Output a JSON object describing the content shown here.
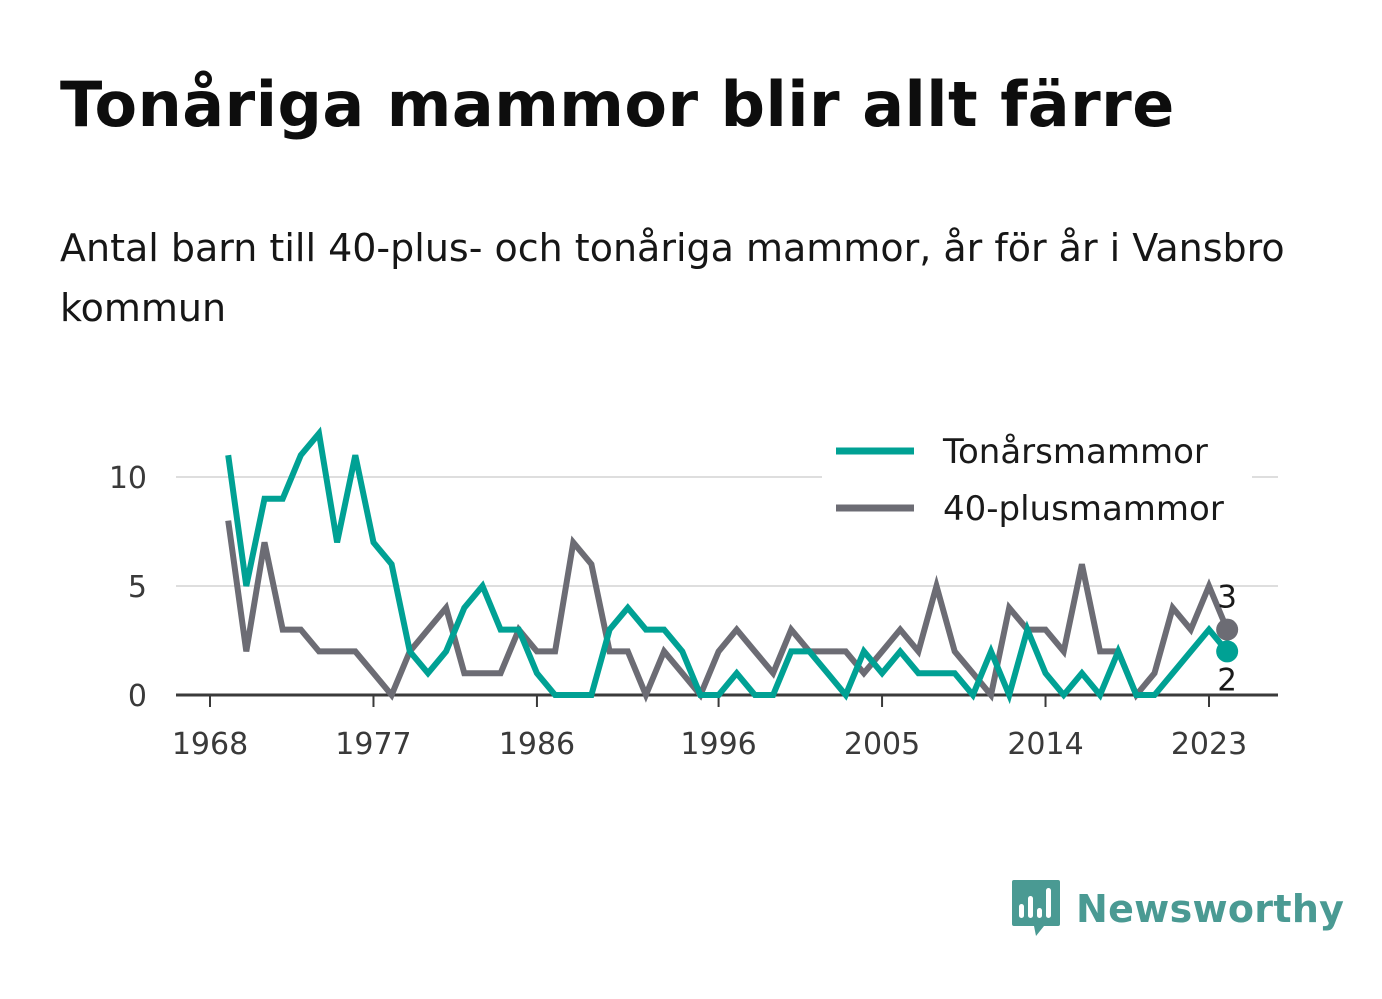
{
  "title": "Tonåriga mammor blir allt färre",
  "subtitle": "Antal barn till 40-plus- och tonåriga mammor, år för år i Vansbro kommun",
  "brand": {
    "name": "Newsworthy",
    "icon": "bar-chart-speech-bubble-icon",
    "color": "#4a9a93"
  },
  "chart_data": {
    "type": "line",
    "x": [
      1969,
      1970,
      1971,
      1972,
      1973,
      1974,
      1975,
      1976,
      1977,
      1978,
      1979,
      1980,
      1981,
      1982,
      1983,
      1984,
      1985,
      1986,
      1987,
      1988,
      1989,
      1990,
      1991,
      1992,
      1993,
      1994,
      1995,
      1996,
      1997,
      1998,
      1999,
      2000,
      2001,
      2002,
      2003,
      2004,
      2005,
      2006,
      2007,
      2008,
      2009,
      2010,
      2011,
      2012,
      2013,
      2014,
      2015,
      2016,
      2017,
      2018,
      2019,
      2020,
      2021,
      2022,
      2023,
      2024
    ],
    "series": [
      {
        "name": "Tonårsmammor",
        "color": "#00a194",
        "values": [
          11,
          5,
          9,
          9,
          11,
          12,
          7,
          11,
          7,
          6,
          2,
          1,
          2,
          4,
          5,
          3,
          3,
          1,
          0,
          0,
          0,
          3,
          4,
          3,
          3,
          2,
          0,
          0,
          1,
          0,
          0,
          2,
          2,
          1,
          0,
          2,
          1,
          2,
          1,
          1,
          1,
          0,
          2,
          0,
          3,
          1,
          0,
          1,
          0,
          2,
          0,
          0,
          1,
          2,
          3,
          2
        ]
      },
      {
        "name": "40-plusmammor",
        "color": "#6c6c74",
        "values": [
          8,
          2,
          7,
          3,
          3,
          2,
          2,
          2,
          1,
          0,
          2,
          3,
          4,
          1,
          1,
          1,
          3,
          2,
          2,
          7,
          6,
          2,
          2,
          0,
          2,
          1,
          0,
          2,
          3,
          2,
          1,
          3,
          2,
          2,
          2,
          1,
          2,
          3,
          2,
          5,
          2,
          1,
          0,
          4,
          3,
          3,
          2,
          6,
          2,
          2,
          0,
          1,
          4,
          3,
          5,
          3
        ]
      }
    ],
    "xticks": [
      "1968",
      "1977",
      "1986",
      "1996",
      "2005",
      "2014",
      "2023"
    ],
    "xtick_values": [
      1968,
      1977,
      1986,
      1996,
      2005,
      2014,
      2023
    ],
    "yticks": [
      "0",
      "5",
      "10"
    ],
    "ytick_values": [
      0,
      5,
      10
    ],
    "ylim": [
      0,
      12
    ],
    "xlim": [
      1967,
      2027
    ],
    "grid": "horizontal",
    "legend": "top-right",
    "end_labels": [
      {
        "series": "40-plusmammor",
        "text": "3"
      },
      {
        "series": "Tonårsmammor",
        "text": "2"
      }
    ]
  }
}
